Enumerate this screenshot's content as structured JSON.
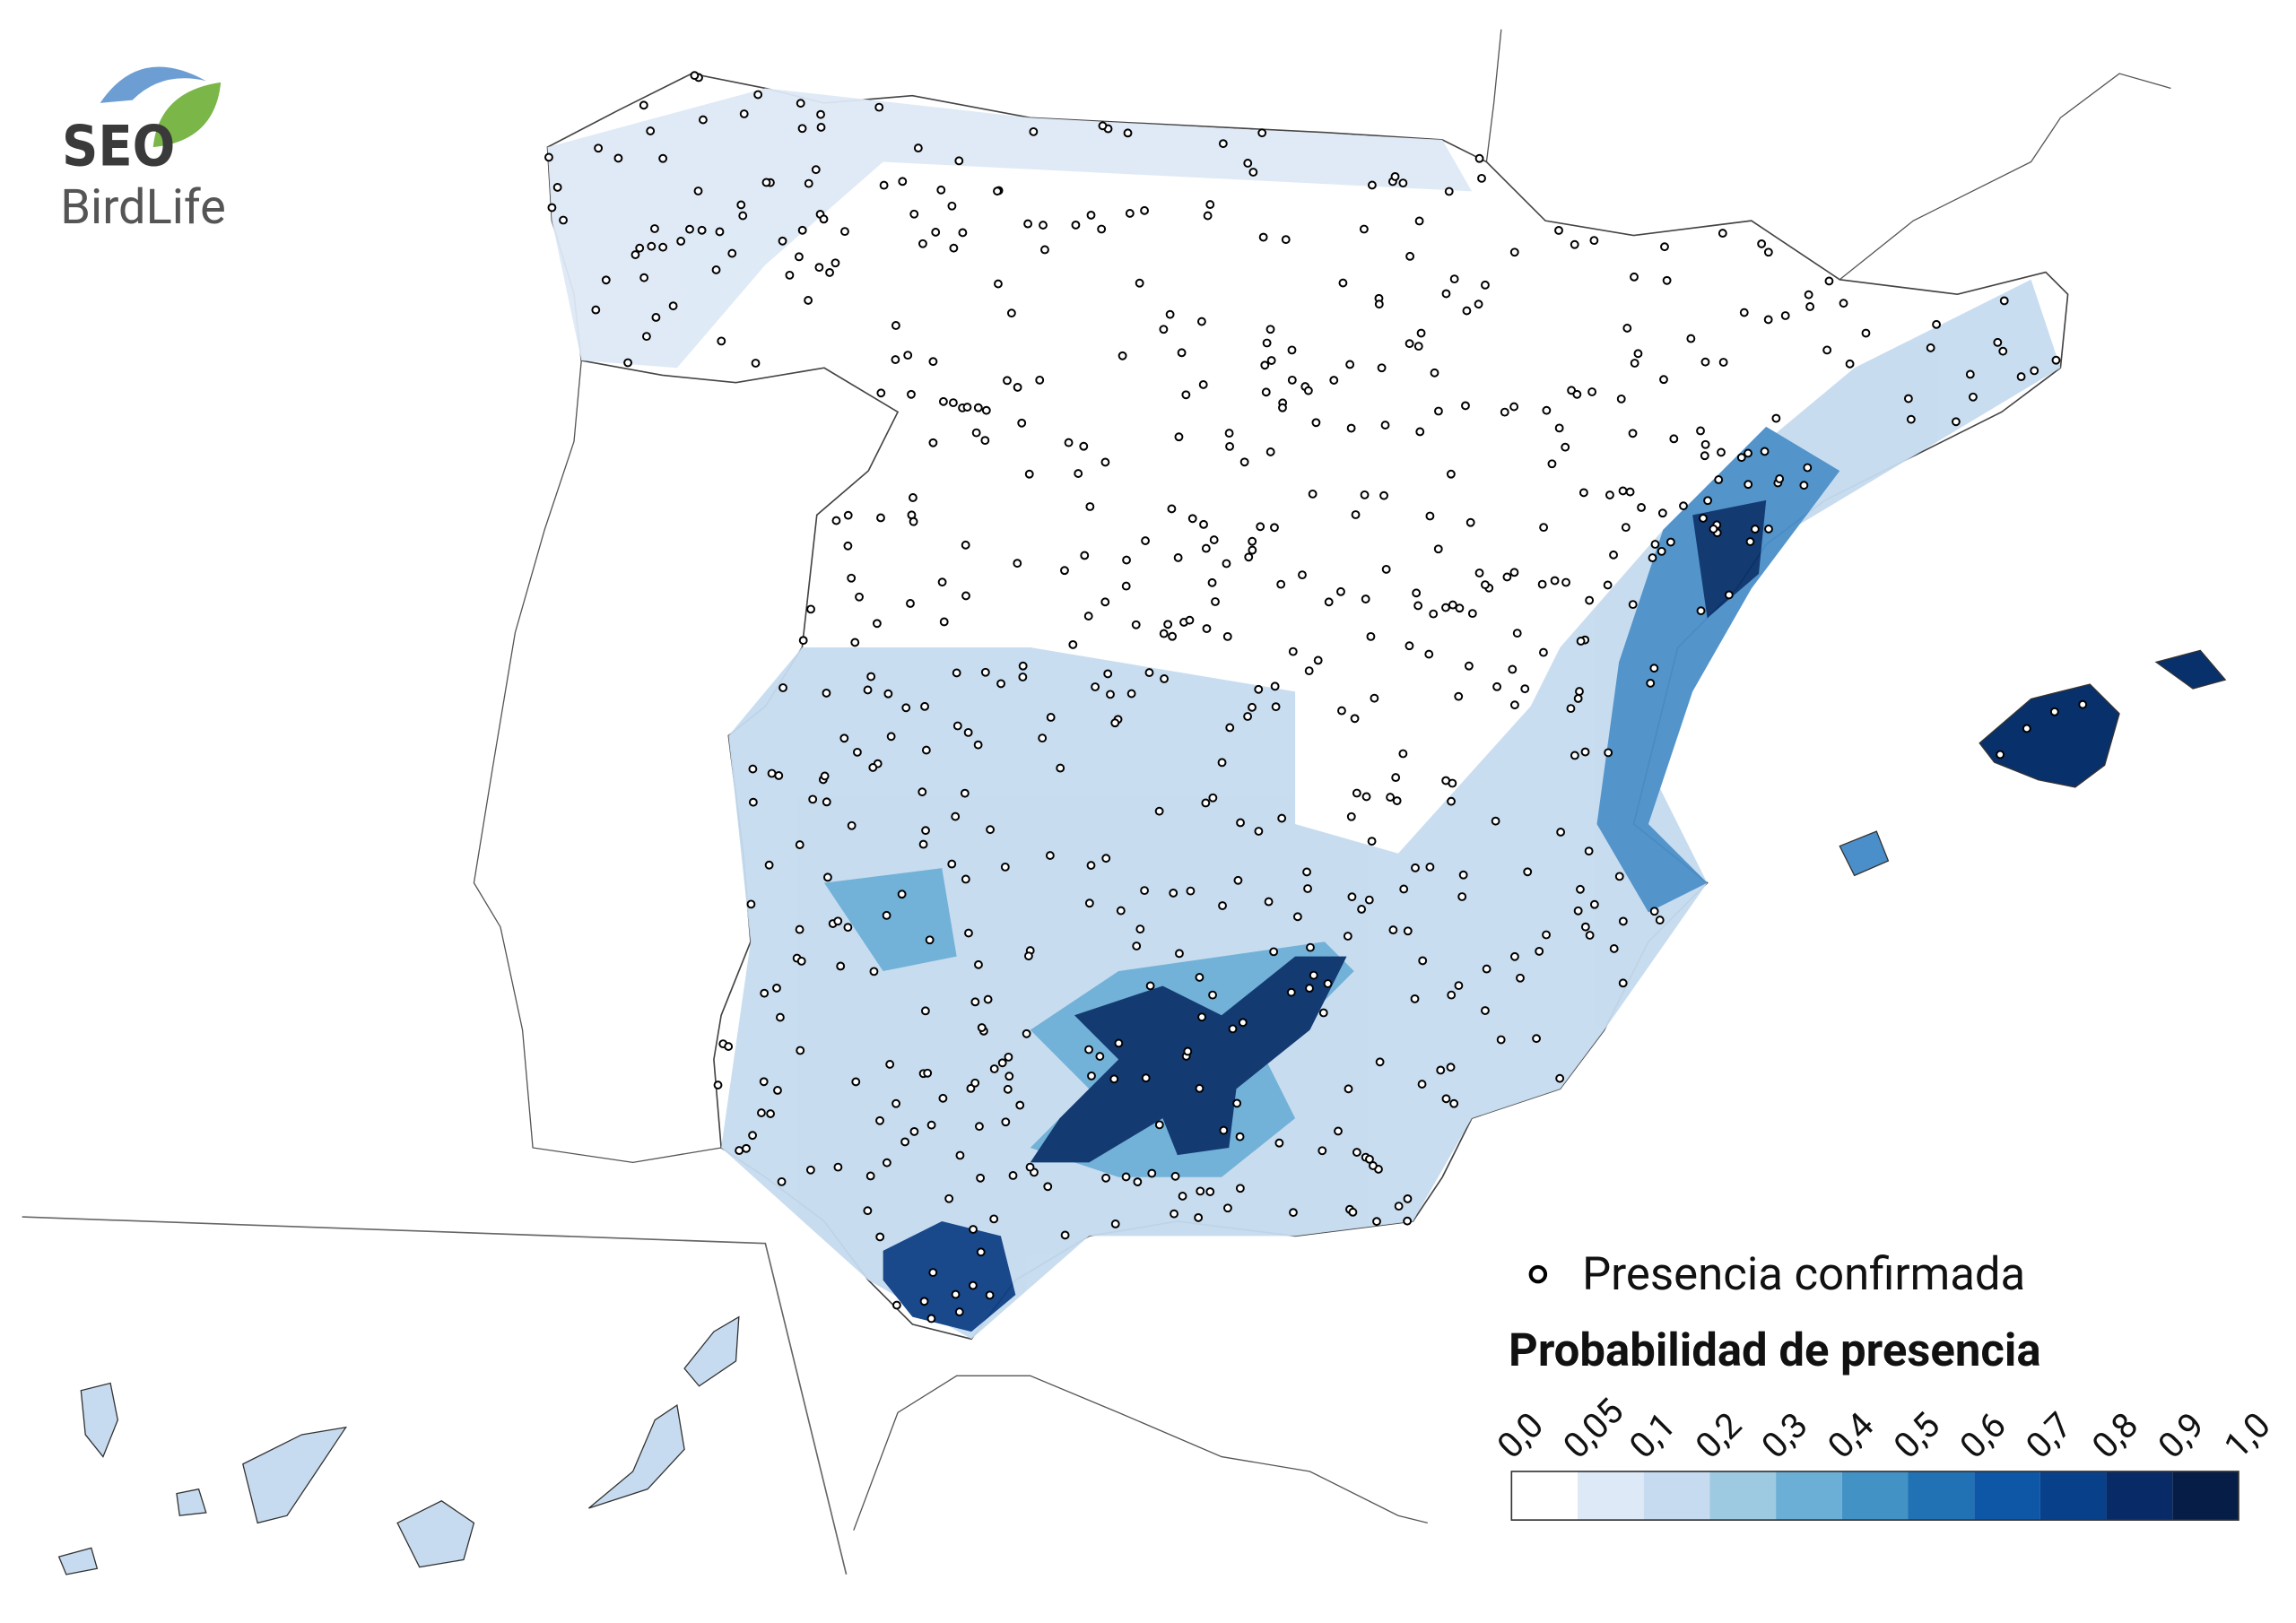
{
  "logo": {
    "line1": "SEO",
    "line2": "BirdLife"
  },
  "legend": {
    "points_label": "Presencia confirmada",
    "title": "Probabilidad de presencia",
    "breaks": [
      "0,0",
      "0,05",
      "0,1",
      "0,2",
      "0,3",
      "0,4",
      "0,5",
      "0,6",
      "0,7",
      "0,8",
      "0,9",
      "1,0"
    ],
    "colors": [
      "#ffffff",
      "#dde9f6",
      "#c6dbef",
      "#9ecae1",
      "#6baed6",
      "#4292c6",
      "#2171b5",
      "#0d57a6",
      "#08408a",
      "#082a66",
      "#061d48"
    ]
  }
}
